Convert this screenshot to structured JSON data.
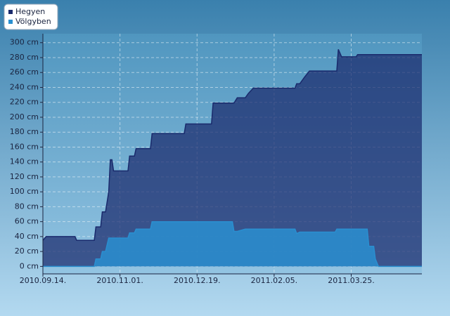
{
  "chart_data": {
    "type": "area",
    "x": [
      "2010-09-14",
      "2010-09-16",
      "2010-10-04",
      "2010-10-05",
      "2010-10-16",
      "2010-10-17",
      "2010-10-20",
      "2010-10-21",
      "2010-10-23",
      "2010-10-25",
      "2010-10-26",
      "2010-10-27",
      "2010-10-28",
      "2010-11-06",
      "2010-11-07",
      "2010-11-10",
      "2010-11-11",
      "2010-11-20",
      "2010-11-21",
      "2010-12-11",
      "2010-12-12",
      "2010-12-28",
      "2010-12-29",
      "2011-01-10",
      "2011-01-11",
      "2011-01-13",
      "2011-01-18",
      "2011-01-20",
      "2011-01-23",
      "2011-02-18",
      "2011-02-19",
      "2011-02-21",
      "2011-02-24",
      "2011-02-27",
      "2011-03-15",
      "2011-03-16",
      "2011-03-17",
      "2011-03-19",
      "2011-03-28",
      "2011-03-29",
      "2011-04-04",
      "2011-04-05",
      "2011-04-08",
      "2011-04-09",
      "2011-04-11",
      "2011-05-08"
    ],
    "series": [
      {
        "name": "Hegyen",
        "color": "#1a2a6c",
        "values": [
          35,
          40,
          40,
          35,
          35,
          53,
          53,
          73,
          73,
          100,
          143,
          143,
          128,
          128,
          148,
          148,
          158,
          158,
          178,
          178,
          191,
          191,
          219,
          219,
          219,
          226,
          226,
          232,
          239,
          239,
          245,
          245,
          254,
          262,
          262,
          262,
          291,
          281,
          281,
          284,
          284,
          284,
          284,
          284,
          284,
          284
        ]
      },
      {
        "name": "Völgyben",
        "color": "#2a8fd0",
        "values": [
          0,
          0,
          0,
          0,
          0,
          10,
          10,
          20,
          20,
          38,
          38,
          38,
          38,
          38,
          45,
          45,
          50,
          50,
          60,
          60,
          60,
          60,
          60,
          60,
          47,
          47,
          50,
          50,
          50,
          50,
          44,
          46,
          46,
          46,
          46,
          50,
          50,
          50,
          50,
          50,
          50,
          27,
          27,
          10,
          0,
          0
        ]
      }
    ],
    "xlim": [
      "2010-09-14",
      "2011-05-08"
    ],
    "xticks": [
      {
        "value": "2010-09-14",
        "label": "2010.09.14."
      },
      {
        "value": "2010-11-01",
        "label": "2010.11.01."
      },
      {
        "value": "2010-12-19",
        "label": "2010.12.19."
      },
      {
        "value": "2011-02-05",
        "label": "2011.02.05."
      },
      {
        "value": "2011-03-25",
        "label": "2011.03.25."
      }
    ],
    "ylim": [
      -10,
      312
    ],
    "yticks": [
      {
        "value": 0,
        "label": "0 cm"
      },
      {
        "value": 20,
        "label": "20 cm"
      },
      {
        "value": 40,
        "label": "40 cm"
      },
      {
        "value": 60,
        "label": "60 cm"
      },
      {
        "value": 80,
        "label": "80 cm"
      },
      {
        "value": 100,
        "label": "100 cm"
      },
      {
        "value": 120,
        "label": "120 cm"
      },
      {
        "value": 140,
        "label": "140 cm"
      },
      {
        "value": 160,
        "label": "160 cm"
      },
      {
        "value": 180,
        "label": "180 cm"
      },
      {
        "value": 200,
        "label": "200 cm"
      },
      {
        "value": 220,
        "label": "220 cm"
      },
      {
        "value": 240,
        "label": "240 cm"
      },
      {
        "value": 260,
        "label": "260 cm"
      },
      {
        "value": 280,
        "label": "280 cm"
      },
      {
        "value": 300,
        "label": "300 cm"
      }
    ],
    "grid": true,
    "legend": "top-left"
  }
}
